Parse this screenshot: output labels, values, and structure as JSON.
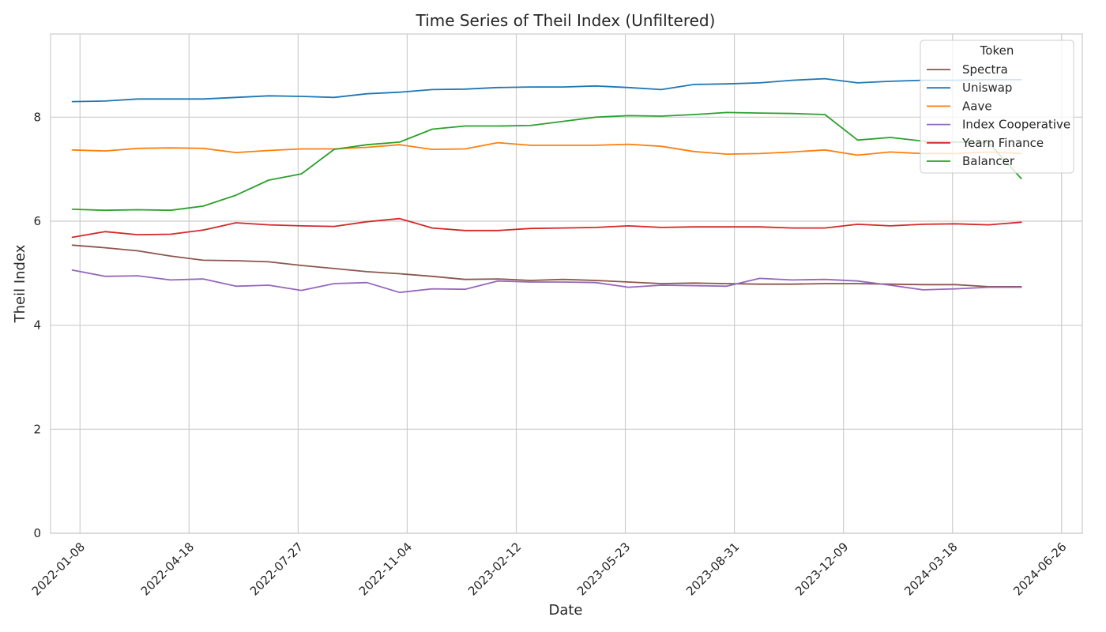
{
  "chart_data": {
    "type": "line",
    "title": "Time Series of Theil Index (Unfiltered)",
    "xlabel": "Date",
    "ylabel": "Theil Index",
    "ylim": [
      0,
      9.6
    ],
    "xlim": [
      "2021-12-12",
      "2024-07-15"
    ],
    "grid": true,
    "legend_title": "Token",
    "legend_position": "top-right",
    "y_ticks": [
      "0",
      "2",
      "4",
      "6",
      "8"
    ],
    "x_ticks": [
      "2022-01-08",
      "2022-04-18",
      "2022-07-27",
      "2022-11-04",
      "2023-02-12",
      "2023-05-23",
      "2023-08-31",
      "2023-12-09",
      "2024-03-18",
      "2024-06-26"
    ],
    "x": [
      "2022-01-01",
      "2022-01-31",
      "2022-03-02",
      "2022-04-01",
      "2022-05-01",
      "2022-05-31",
      "2022-06-30",
      "2022-07-30",
      "2022-08-29",
      "2022-09-28",
      "2022-10-28",
      "2022-11-27",
      "2022-12-27",
      "2023-01-26",
      "2023-02-25",
      "2023-03-27",
      "2023-04-26",
      "2023-05-26",
      "2023-06-25",
      "2023-07-25",
      "2023-08-24",
      "2023-09-23",
      "2023-10-23",
      "2023-11-22",
      "2023-12-22",
      "2024-01-21",
      "2024-02-20",
      "2024-03-21",
      "2024-04-20",
      "2024-05-20"
    ],
    "series": [
      {
        "name": "Spectra",
        "color": "#8c564b",
        "values": [
          5.54,
          5.49,
          5.43,
          5.33,
          5.25,
          5.24,
          5.22,
          5.15,
          5.09,
          5.03,
          4.99,
          4.94,
          4.88,
          4.89,
          4.86,
          4.88,
          4.86,
          4.83,
          4.8,
          4.81,
          4.8,
          4.79,
          4.79,
          4.8,
          4.8,
          4.79,
          4.78,
          4.78,
          4.74,
          4.74
        ]
      },
      {
        "name": "Uniswap",
        "color": "#1f77b4",
        "values": [
          8.3,
          8.31,
          8.35,
          8.35,
          8.35,
          8.38,
          8.41,
          8.4,
          8.38,
          8.45,
          8.48,
          8.53,
          8.54,
          8.57,
          8.58,
          8.58,
          8.6,
          8.57,
          8.53,
          8.63,
          8.64,
          8.66,
          8.71,
          8.74,
          8.66,
          8.69,
          8.71,
          8.71,
          8.72,
          8.72
        ]
      },
      {
        "name": "Aave",
        "color": "#ff7f0e",
        "values": [
          7.37,
          7.35,
          7.4,
          7.41,
          7.4,
          7.32,
          7.36,
          7.39,
          7.39,
          7.42,
          7.47,
          7.38,
          7.39,
          7.51,
          7.46,
          7.46,
          7.46,
          7.48,
          7.44,
          7.34,
          7.29,
          7.3,
          7.33,
          7.37,
          7.27,
          7.33,
          7.3,
          7.3,
          7.33,
          7.3
        ]
      },
      {
        "name": "Index Cooperative",
        "color": "#9467bd",
        "values": [
          5.06,
          4.94,
          4.95,
          4.87,
          4.89,
          4.75,
          4.77,
          4.67,
          4.8,
          4.82,
          4.63,
          4.7,
          4.69,
          4.85,
          4.83,
          4.83,
          4.82,
          4.73,
          4.77,
          4.76,
          4.75,
          4.9,
          4.87,
          4.88,
          4.85,
          4.77,
          4.68,
          4.7,
          4.73,
          4.73
        ]
      },
      {
        "name": "Yearn Finance",
        "color": "#d62728",
        "values": [
          5.69,
          5.8,
          5.74,
          5.75,
          5.83,
          5.97,
          5.93,
          5.91,
          5.9,
          5.99,
          6.05,
          5.87,
          5.82,
          5.82,
          5.86,
          5.87,
          5.88,
          5.91,
          5.88,
          5.89,
          5.89,
          5.89,
          5.87,
          5.87,
          5.94,
          5.91,
          5.94,
          5.95,
          5.93,
          5.98
        ]
      },
      {
        "name": "Balancer",
        "color": "#2ca02c",
        "values": [
          6.23,
          6.21,
          6.22,
          6.21,
          6.29,
          6.5,
          6.79,
          6.91,
          7.38,
          7.47,
          7.52,
          7.77,
          7.83,
          7.83,
          7.84,
          7.92,
          8.0,
          8.03,
          8.02,
          8.05,
          8.09,
          8.08,
          8.07,
          8.05,
          7.56,
          7.61,
          7.54,
          7.52,
          7.51,
          6.82
        ]
      }
    ]
  }
}
